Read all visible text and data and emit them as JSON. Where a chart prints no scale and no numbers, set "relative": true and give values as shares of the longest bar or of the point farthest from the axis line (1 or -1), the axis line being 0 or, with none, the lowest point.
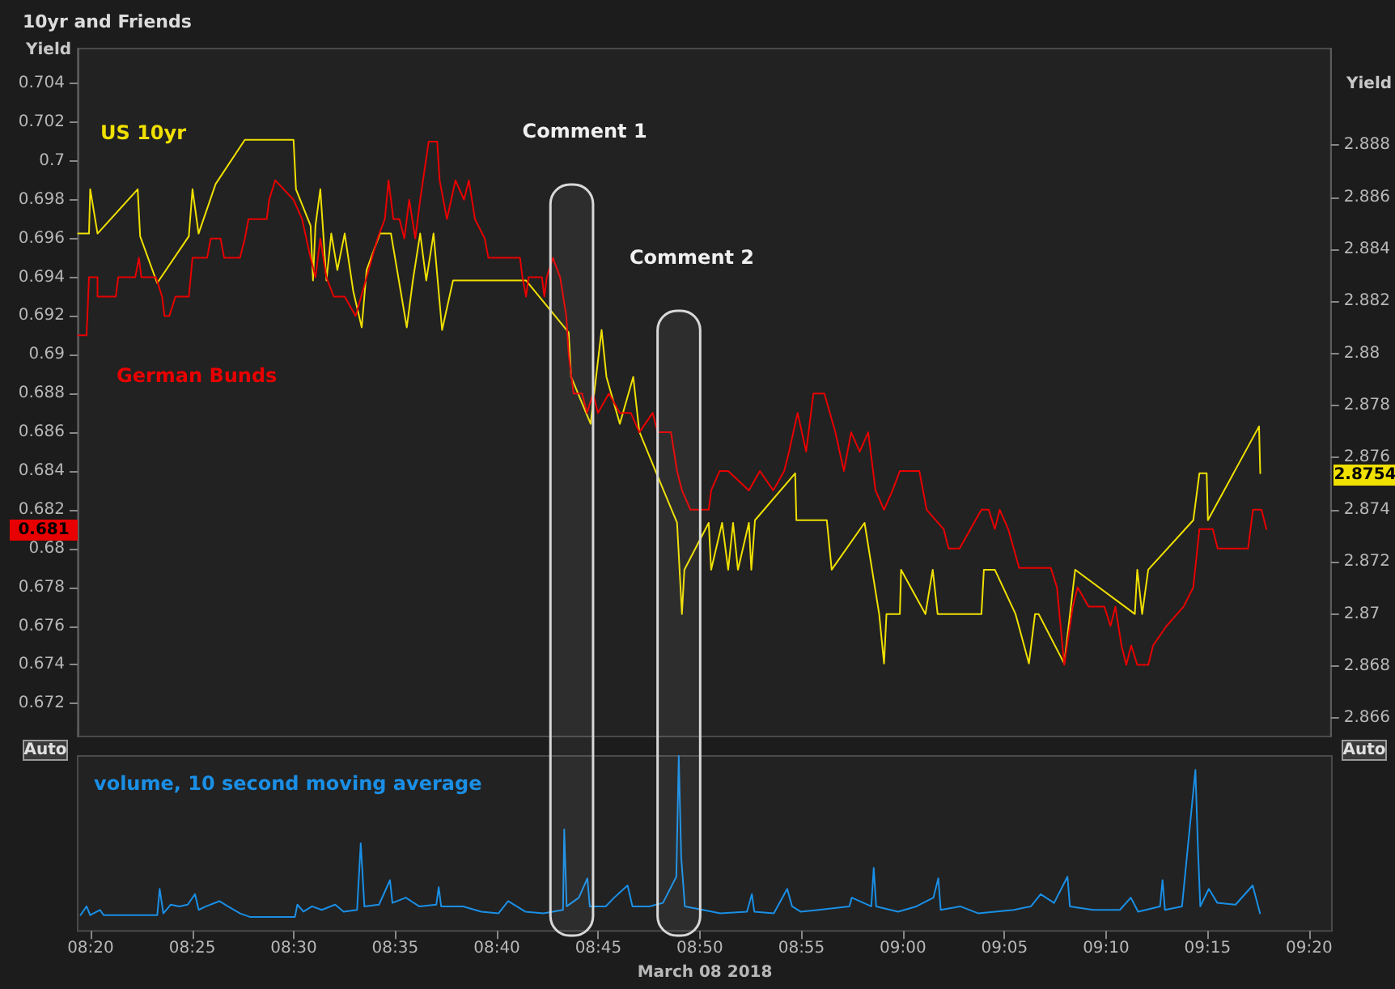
{
  "chart_data": [
    {
      "type": "line",
      "title": "10yr and Friends",
      "ylabel": "Yield",
      "y2label": "Yield",
      "xlim": [
        8.3227,
        9.352
      ],
      "ylim": [
        0.6703,
        0.7058
      ],
      "yticks": [
        0.672,
        0.674,
        0.676,
        0.678,
        0.68,
        0.682,
        0.684,
        0.686,
        0.688,
        0.69,
        0.692,
        0.694,
        0.696,
        0.698,
        0.7,
        0.702,
        0.704
      ],
      "y2lim": [
        2.8653,
        2.8917
      ],
      "y2ticks": [
        2.866,
        2.868,
        2.87,
        2.872,
        2.874,
        2.876,
        2.878,
        2.88,
        2.882,
        2.884,
        2.886,
        2.888
      ],
      "tick_labels": "y",
      "series": [
        {
          "name": "US 10yr",
          "color": "#f0e000",
          "axis": "y2",
          "x": [
            8.323,
            8.332,
            8.333,
            8.339,
            8.372,
            8.374,
            8.388,
            8.414,
            8.417,
            8.422,
            8.436,
            8.46,
            8.5,
            8.502,
            8.514,
            8.516,
            8.518,
            8.522,
            8.527,
            8.531,
            8.536,
            8.542,
            8.549,
            8.556,
            8.56,
            8.571,
            8.58,
            8.593,
            8.598,
            8.604,
            8.609,
            8.615,
            8.622,
            8.631,
            8.691,
            8.726,
            8.728,
            8.744,
            8.753,
            8.757,
            8.768,
            8.779,
            8.784,
            8.799,
            8.815,
            8.819,
            8.821,
            8.841,
            8.843,
            8.852,
            8.857,
            8.861,
            8.865,
            8.874,
            8.876,
            8.879,
            8.912,
            8.913,
            8.938,
            8.942,
            8.969,
            8.981,
            8.985,
            8.987,
            8.998,
            8.999,
            9.019,
            9.025,
            9.029,
            9.065,
            9.067,
            9.076,
            9.093,
            9.104,
            9.109,
            9.112,
            9.133,
            9.142,
            9.191,
            9.193,
            9.197,
            9.202,
            9.239,
            9.244,
            9.25,
            9.251,
            9.293,
            9.294
          ],
          "values": [
            2.8846,
            2.8846,
            2.8863,
            2.8846,
            2.8863,
            2.8845,
            2.8827,
            2.8845,
            2.8863,
            2.8846,
            2.8865,
            2.8882,
            2.8882,
            2.8863,
            2.8849,
            2.8828,
            2.8849,
            2.8863,
            2.8828,
            2.8846,
            2.8832,
            2.8846,
            2.8824,
            2.881,
            2.8832,
            2.8846,
            2.8846,
            2.881,
            2.8828,
            2.8846,
            2.8828,
            2.8846,
            2.8809,
            2.8828,
            2.8828,
            2.8808,
            2.8791,
            2.8773,
            2.8809,
            2.8791,
            2.8773,
            2.8791,
            2.877,
            2.8753,
            2.8735,
            2.87,
            2.8717,
            2.8735,
            2.8717,
            2.8735,
            2.8717,
            2.8735,
            2.8717,
            2.8735,
            2.8717,
            2.8736,
            2.8754,
            2.8736,
            2.8736,
            2.8717,
            2.8735,
            2.87,
            2.8681,
            2.87,
            2.87,
            2.8717,
            2.87,
            2.8717,
            2.87,
            2.87,
            2.8717,
            2.8717,
            2.87,
            2.8681,
            2.87,
            2.87,
            2.8681,
            2.8717,
            2.87,
            2.8717,
            2.87,
            2.8717,
            2.8736,
            2.8754,
            2.8754,
            2.8736,
            2.8772,
            2.8754
          ]
        },
        {
          "name": "German Bunds",
          "color": "#e80000",
          "x": [
            8.323,
            8.33,
            8.332,
            8.339,
            8.339,
            8.354,
            8.356,
            8.37,
            8.373,
            8.375,
            8.387,
            8.392,
            8.394,
            8.398,
            8.403,
            8.414,
            8.417,
            8.429,
            8.432,
            8.44,
            8.443,
            8.456,
            8.46,
            8.463,
            8.478,
            8.48,
            8.485,
            8.5,
            8.507,
            8.514,
            8.518,
            8.522,
            8.527,
            8.533,
            8.542,
            8.551,
            8.56,
            8.569,
            8.575,
            8.578,
            8.582,
            8.587,
            8.591,
            8.595,
            8.6,
            8.604,
            8.611,
            8.618,
            8.62,
            8.626,
            8.633,
            8.64,
            8.644,
            8.649,
            8.657,
            8.66,
            8.686,
            8.688,
            8.691,
            8.693,
            8.704,
            8.706,
            8.708,
            8.713,
            8.719,
            8.724,
            8.726,
            8.73,
            8.737,
            8.741,
            8.746,
            8.75,
            8.759,
            8.768,
            8.777,
            8.784,
            8.795,
            8.799,
            8.81,
            8.815,
            8.819,
            8.826,
            8.83,
            8.841,
            8.843,
            8.85,
            8.857,
            8.874,
            8.883,
            8.894,
            8.903,
            8.907,
            8.914,
            8.921,
            8.927,
            8.936,
            8.945,
            8.952,
            8.958,
            8.965,
            8.972,
            8.978,
            8.985,
            8.992,
            8.998,
            9.014,
            9.02,
            9.034,
            9.038,
            9.047,
            9.056,
            9.065,
            9.071,
            9.076,
            9.08,
            9.087,
            9.096,
            9.122,
            9.127,
            9.133,
            9.14,
            9.144,
            9.153,
            9.166,
            9.171,
            9.175,
            9.18,
            9.184,
            9.188,
            9.193,
            9.202,
            9.206,
            9.217,
            9.231,
            9.239,
            9.244,
            9.255,
            9.259,
            9.284,
            9.288,
            9.295,
            9.299
          ],
          "values": [
            0.691,
            0.691,
            0.694,
            0.694,
            0.693,
            0.693,
            0.694,
            0.694,
            0.695,
            0.694,
            0.694,
            0.693,
            0.692,
            0.692,
            0.693,
            0.693,
            0.695,
            0.695,
            0.696,
            0.696,
            0.695,
            0.695,
            0.696,
            0.697,
            0.697,
            0.698,
            0.699,
            0.698,
            0.697,
            0.695,
            0.694,
            0.696,
            0.694,
            0.693,
            0.693,
            0.692,
            0.694,
            0.696,
            0.697,
            0.699,
            0.697,
            0.697,
            0.696,
            0.698,
            0.696,
            0.698,
            0.701,
            0.701,
            0.699,
            0.697,
            0.699,
            0.698,
            0.699,
            0.697,
            0.696,
            0.695,
            0.695,
            0.694,
            0.693,
            0.694,
            0.694,
            0.693,
            0.694,
            0.695,
            0.694,
            0.692,
            0.69,
            0.688,
            0.688,
            0.687,
            0.688,
            0.687,
            0.688,
            0.687,
            0.687,
            0.686,
            0.687,
            0.686,
            0.686,
            0.684,
            0.683,
            0.682,
            0.682,
            0.682,
            0.683,
            0.684,
            0.684,
            0.683,
            0.684,
            0.683,
            0.684,
            0.685,
            0.687,
            0.685,
            0.688,
            0.688,
            0.686,
            0.684,
            0.686,
            0.685,
            0.686,
            0.683,
            0.682,
            0.683,
            0.684,
            0.684,
            0.682,
            0.681,
            0.68,
            0.68,
            0.681,
            0.682,
            0.682,
            0.681,
            0.682,
            0.681,
            0.679,
            0.679,
            0.678,
            0.674,
            0.677,
            0.678,
            0.677,
            0.677,
            0.676,
            0.677,
            0.675,
            0.674,
            0.675,
            0.674,
            0.674,
            0.675,
            0.676,
            0.677,
            0.678,
            0.681,
            0.681,
            0.68,
            0.68,
            0.682,
            0.682,
            0.681
          ]
        }
      ],
      "annotations": [
        "Auto",
        "Auto",
        "0.681",
        "2.8754"
      ],
      "bands": [
        {
          "axis": "x",
          "from": 8.711,
          "to": 8.746,
          "label": "Comment 1",
          "color": "#d8d8d8"
        },
        {
          "axis": "x",
          "from": 8.799,
          "to": 8.834,
          "label": "Comment 2",
          "color": "#d8d8d8"
        }
      ]
    },
    {
      "type": "line",
      "xlabel": "March 08 2018",
      "xlim": [
        8.3227,
        9.352
      ],
      "xticks": [
        {
          "value": 8.3333,
          "label": "08:20"
        },
        {
          "value": 8.4167,
          "label": "08:25"
        },
        {
          "value": 8.5,
          "label": "08:30"
        },
        {
          "value": 8.5833,
          "label": "08:35"
        },
        {
          "value": 8.6667,
          "label": "08:40"
        },
        {
          "value": 8.75,
          "label": "08:45"
        },
        {
          "value": 8.8333,
          "label": "08:50"
        },
        {
          "value": 8.9167,
          "label": "08:55"
        },
        {
          "value": 9,
          "label": "09:00"
        },
        {
          "value": 9.0833,
          "label": "09:05"
        },
        {
          "value": 9.1667,
          "label": "09:10"
        },
        {
          "value": 9.25,
          "label": "09:15"
        },
        {
          "value": 9.3333,
          "label": "09:20"
        }
      ],
      "tick_labels": "x",
      "relative": true,
      "series": [
        {
          "name": "volume, 10 second moving average",
          "color": "#1a8fe6",
          "x": [
            8.325,
            8.33,
            8.333,
            8.341,
            8.344,
            8.388,
            8.39,
            8.393,
            8.399,
            8.406,
            8.413,
            8.419,
            8.422,
            8.428,
            8.439,
            8.446,
            8.456,
            8.464,
            8.501,
            8.503,
            8.508,
            8.515,
            8.523,
            8.534,
            8.541,
            8.552,
            8.555,
            8.558,
            8.57,
            8.579,
            8.581,
            8.592,
            8.603,
            8.617,
            8.619,
            8.621,
            8.639,
            8.654,
            8.668,
            8.676,
            8.69,
            8.705,
            8.721,
            8.722,
            8.724,
            8.734,
            8.741,
            8.743,
            8.756,
            8.763,
            8.774,
            8.778,
            8.792,
            8.803,
            8.814,
            8.816,
            8.818,
            8.821,
            8.836,
            8.85,
            8.872,
            8.876,
            8.878,
            8.894,
            8.905,
            8.909,
            8.916,
            8.931,
            8.956,
            8.958,
            8.974,
            8.976,
            8.978,
            8.996,
            9.011,
            9.025,
            9.029,
            9.031,
            9.047,
            9.062,
            9.091,
            9.105,
            9.113,
            9.124,
            9.135,
            9.137,
            9.156,
            9.178,
            9.187,
            9.193,
            9.211,
            9.213,
            9.215,
            9.229,
            9.24,
            9.242,
            9.244,
            9.251,
            9.258,
            9.273,
            9.287,
            9.293
          ],
          "values": [
            0.09,
            0.14,
            0.09,
            0.12,
            0.09,
            0.09,
            0.24,
            0.1,
            0.15,
            0.14,
            0.15,
            0.21,
            0.12,
            0.14,
            0.17,
            0.14,
            0.1,
            0.08,
            0.08,
            0.15,
            0.11,
            0.14,
            0.12,
            0.15,
            0.11,
            0.12,
            0.5,
            0.14,
            0.15,
            0.29,
            0.16,
            0.19,
            0.14,
            0.15,
            0.25,
            0.14,
            0.14,
            0.11,
            0.1,
            0.17,
            0.11,
            0.1,
            0.12,
            0.58,
            0.14,
            0.19,
            0.3,
            0.14,
            0.14,
            0.19,
            0.26,
            0.14,
            0.14,
            0.16,
            0.31,
            1.0,
            0.42,
            0.14,
            0.12,
            0.1,
            0.11,
            0.21,
            0.11,
            0.1,
            0.24,
            0.14,
            0.11,
            0.12,
            0.14,
            0.19,
            0.14,
            0.36,
            0.14,
            0.11,
            0.14,
            0.19,
            0.3,
            0.12,
            0.14,
            0.1,
            0.12,
            0.14,
            0.21,
            0.16,
            0.31,
            0.14,
            0.12,
            0.12,
            0.19,
            0.11,
            0.14,
            0.29,
            0.12,
            0.14,
            0.92,
            0.49,
            0.14,
            0.24,
            0.16,
            0.15,
            0.26,
            0.1
          ]
        }
      ]
    }
  ]
}
